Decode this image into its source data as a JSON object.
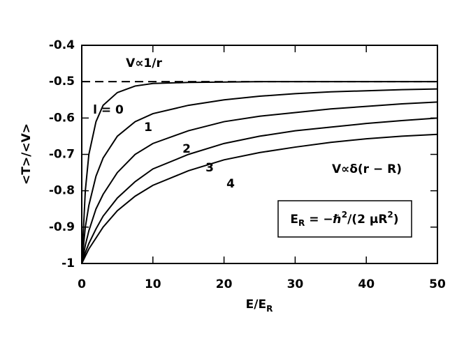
{
  "chart_data": {
    "type": "line",
    "x_label": [
      "E/E",
      "R"
    ],
    "y_label": "<T>/<V>",
    "x": [
      0,
      0.5,
      1,
      2,
      3,
      5,
      7.5,
      10,
      15,
      20,
      25,
      30,
      35,
      40,
      45,
      50
    ],
    "series": [
      {
        "name": "l = 0",
        "color": "#000000",
        "values": [
          -1,
          -0.8,
          -0.7,
          -0.61,
          -0.565,
          -0.53,
          -0.512,
          -0.505,
          -0.502,
          -0.501,
          -0.5,
          -0.5,
          -0.5,
          -0.5,
          -0.5,
          -0.5
        ]
      },
      {
        "name": "1",
        "color": "#000000",
        "values": [
          -1,
          -0.9,
          -0.84,
          -0.76,
          -0.71,
          -0.65,
          -0.61,
          -0.588,
          -0.565,
          -0.55,
          -0.54,
          -0.533,
          -0.528,
          -0.525,
          -0.522,
          -0.52
        ]
      },
      {
        "name": "2",
        "color": "#000000",
        "values": [
          -1,
          -0.95,
          -0.91,
          -0.85,
          -0.81,
          -0.75,
          -0.7,
          -0.67,
          -0.635,
          -0.61,
          -0.595,
          -0.585,
          -0.575,
          -0.568,
          -0.561,
          -0.556
        ]
      },
      {
        "name": "3",
        "color": "#000000",
        "values": [
          -1,
          -0.97,
          -0.945,
          -0.905,
          -0.87,
          -0.82,
          -0.775,
          -0.74,
          -0.7,
          -0.67,
          -0.65,
          -0.635,
          -0.625,
          -0.615,
          -0.607,
          -0.6
        ]
      },
      {
        "name": "4",
        "color": "#000000",
        "values": [
          -1,
          -0.98,
          -0.96,
          -0.93,
          -0.9,
          -0.855,
          -0.815,
          -0.785,
          -0.745,
          -0.715,
          -0.695,
          -0.68,
          -0.667,
          -0.657,
          -0.65,
          -0.645
        ]
      },
      {
        "name": "V∝1/r",
        "color": "#000000",
        "dashed": true,
        "x": [
          0,
          50
        ],
        "values": [
          -0.5,
          -0.5
        ]
      }
    ],
    "annotation": "V∝δ(r − R)",
    "box_label": [
      "E",
      "R",
      " = −ℏ",
      "2",
      "/(2 μR",
      "2",
      ")"
    ],
    "xlim": [
      0,
      50
    ],
    "xticks": [
      0,
      10,
      20,
      30,
      40,
      50
    ],
    "ylim": [
      -1,
      -0.4
    ],
    "yticks": [
      -0.4,
      -0.5,
      -0.6,
      -0.7,
      -0.8,
      -0.9,
      -1
    ],
    "grid": false
  }
}
